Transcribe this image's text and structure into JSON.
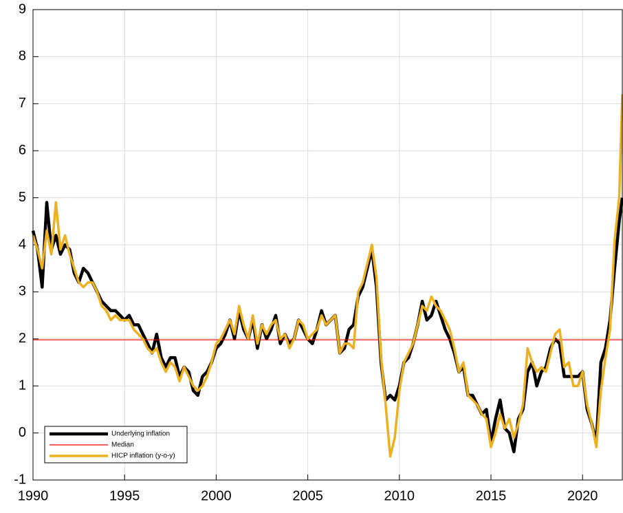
{
  "chart_data": {
    "type": "line",
    "x": [
      1990,
      1990.25,
      1990.5,
      1990.75,
      1991,
      1991.25,
      1991.5,
      1991.75,
      1992,
      1992.25,
      1992.5,
      1992.75,
      1993,
      1993.25,
      1993.5,
      1993.75,
      1994,
      1994.25,
      1994.5,
      1994.75,
      1995,
      1995.25,
      1995.5,
      1995.75,
      1996,
      1996.25,
      1996.5,
      1996.75,
      1997,
      1997.25,
      1997.5,
      1997.75,
      1998,
      1998.25,
      1998.5,
      1998.75,
      1999,
      1999.25,
      1999.5,
      1999.75,
      2000,
      2000.25,
      2000.5,
      2000.75,
      2001,
      2001.25,
      2001.5,
      2001.75,
      2002,
      2002.25,
      2002.5,
      2002.75,
      2003,
      2003.25,
      2003.5,
      2003.75,
      2004,
      2004.25,
      2004.5,
      2004.75,
      2005,
      2005.25,
      2005.5,
      2005.75,
      2006,
      2006.25,
      2006.5,
      2006.75,
      2007,
      2007.25,
      2007.5,
      2007.75,
      2008,
      2008.25,
      2008.5,
      2008.75,
      2009,
      2009.25,
      2009.5,
      2009.75,
      2010,
      2010.25,
      2010.5,
      2010.75,
      2011,
      2011.25,
      2011.5,
      2011.75,
      2012,
      2012.25,
      2012.5,
      2012.75,
      2013,
      2013.25,
      2013.5,
      2013.75,
      2014,
      2014.25,
      2014.5,
      2014.75,
      2015,
      2015.25,
      2015.5,
      2015.75,
      2016,
      2016.25,
      2016.5,
      2016.75,
      2017,
      2017.25,
      2017.5,
      2017.75,
      2018,
      2018.25,
      2018.5,
      2018.75,
      2019,
      2019.25,
      2019.5,
      2019.75,
      2020,
      2020.25,
      2020.5,
      2020.75,
      2021,
      2021.25,
      2021.5,
      2021.75,
      2022,
      2022.17
    ],
    "series": [
      {
        "name": "Underlying inflation",
        "color": "#000000",
        "values": [
          4.3,
          3.9,
          3.1,
          4.9,
          3.9,
          4.2,
          3.8,
          4.0,
          3.9,
          3.4,
          3.2,
          3.5,
          3.4,
          3.2,
          3.0,
          2.8,
          2.7,
          2.6,
          2.6,
          2.5,
          2.4,
          2.5,
          2.3,
          2.3,
          2.1,
          1.9,
          1.7,
          2.1,
          1.6,
          1.4,
          1.6,
          1.6,
          1.2,
          1.4,
          1.3,
          0.9,
          0.8,
          1.2,
          1.3,
          1.5,
          1.8,
          1.9,
          2.1,
          2.4,
          2.0,
          2.6,
          2.2,
          2.0,
          2.4,
          1.8,
          2.3,
          2.0,
          2.2,
          2.5,
          1.9,
          2.1,
          1.9,
          2.0,
          2.4,
          2.2,
          2.0,
          1.9,
          2.2,
          2.6,
          2.3,
          2.4,
          2.5,
          1.7,
          1.8,
          2.2,
          2.3,
          2.9,
          3.1,
          3.5,
          3.9,
          3.1,
          1.5,
          0.7,
          0.8,
          0.7,
          1.0,
          1.5,
          1.6,
          1.9,
          2.3,
          2.8,
          2.4,
          2.5,
          2.8,
          2.5,
          2.2,
          2.0,
          1.7,
          1.3,
          1.4,
          0.8,
          0.8,
          0.6,
          0.4,
          0.5,
          -0.2,
          0.3,
          0.7,
          0.1,
          0.0,
          -0.4,
          0.3,
          0.5,
          1.3,
          1.5,
          1.0,
          1.3,
          1.4,
          1.8,
          2.0,
          1.9,
          1.2,
          1.2,
          1.2,
          1.2,
          1.3,
          0.5,
          0.2,
          -0.2,
          1.5,
          1.8,
          2.4,
          3.5,
          4.5,
          5.0
        ]
      },
      {
        "name": "Median",
        "color": "#ff0000",
        "y": 1.98
      },
      {
        "name": "HICP inflation (y-o-y)",
        "color": "#edb120",
        "values": [
          4.2,
          3.9,
          3.5,
          4.3,
          3.8,
          4.9,
          3.9,
          4.2,
          3.8,
          3.5,
          3.2,
          3.1,
          3.2,
          3.2,
          3.0,
          2.7,
          2.6,
          2.4,
          2.5,
          2.4,
          2.4,
          2.4,
          2.2,
          2.1,
          2.0,
          1.8,
          1.7,
          1.8,
          1.5,
          1.3,
          1.5,
          1.4,
          1.1,
          1.4,
          1.2,
          1.0,
          0.9,
          1.0,
          1.2,
          1.5,
          1.9,
          2.0,
          2.2,
          2.4,
          2.1,
          2.7,
          2.3,
          2.0,
          2.5,
          1.9,
          2.3,
          2.1,
          2.3,
          2.4,
          2.0,
          2.1,
          1.8,
          2.0,
          2.4,
          2.3,
          2.0,
          2.1,
          2.2,
          2.5,
          2.3,
          2.4,
          2.5,
          1.7,
          1.9,
          1.9,
          1.8,
          3.0,
          3.2,
          3.6,
          4.0,
          3.3,
          1.6,
          0.6,
          -0.5,
          -0.1,
          0.9,
          1.5,
          1.7,
          1.9,
          2.3,
          2.7,
          2.6,
          2.9,
          2.7,
          2.6,
          2.4,
          2.2,
          1.8,
          1.3,
          1.5,
          0.8,
          0.7,
          0.6,
          0.4,
          0.3,
          -0.3,
          0.0,
          0.4,
          0.1,
          0.3,
          -0.1,
          0.2,
          0.6,
          1.8,
          1.5,
          1.3,
          1.4,
          1.3,
          1.7,
          2.1,
          2.2,
          1.4,
          1.5,
          1.0,
          1.0,
          1.3,
          0.6,
          0.2,
          -0.3,
          0.9,
          1.6,
          2.2,
          4.1,
          5.0,
          7.2
        ]
      }
    ],
    "xlim": [
      1990,
      2022.17
    ],
    "ylim": [
      -1,
      9
    ],
    "xticks": [
      1990,
      1995,
      2000,
      2005,
      2010,
      2015,
      2020
    ],
    "yticks": [
      -1,
      0,
      1,
      2,
      3,
      4,
      5,
      6,
      7,
      8,
      9
    ],
    "grid": true,
    "legend": "lower left"
  }
}
